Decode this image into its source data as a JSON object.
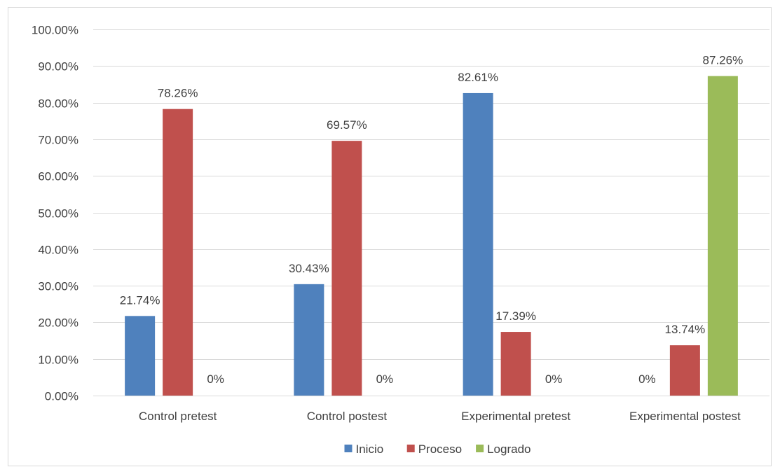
{
  "chart_data": {
    "type": "bar",
    "categories": [
      "Control pretest",
      "Control postest",
      "Experimental pretest",
      "Experimental postest"
    ],
    "series": [
      {
        "name": "Inicio",
        "values": [
          21.74,
          30.43,
          82.61,
          0
        ],
        "labels": [
          "21.74%",
          "30.43%",
          "82.61%",
          "0%"
        ],
        "color": "#4f81bd"
      },
      {
        "name": "Proceso",
        "values": [
          78.26,
          69.57,
          17.39,
          13.74
        ],
        "labels": [
          "78.26%",
          "69.57%",
          "17.39%",
          "13.74%"
        ],
        "color": "#c0504d"
      },
      {
        "name": "Logrado",
        "values": [
          0,
          0,
          0,
          87.26
        ],
        "labels": [
          "0%",
          "0%",
          "0%",
          "87.26%"
        ],
        "color": "#9bbb59"
      }
    ],
    "yticks": [
      "0.00%",
      "10.00%",
      "20.00%",
      "30.00%",
      "40.00%",
      "50.00%",
      "60.00%",
      "70.00%",
      "80.00%",
      "90.00%",
      "100.00%"
    ],
    "ylim": [
      0,
      100
    ],
    "title": "",
    "xlabel": "",
    "ylabel": "",
    "grid": true,
    "legend_position": "bottom"
  }
}
